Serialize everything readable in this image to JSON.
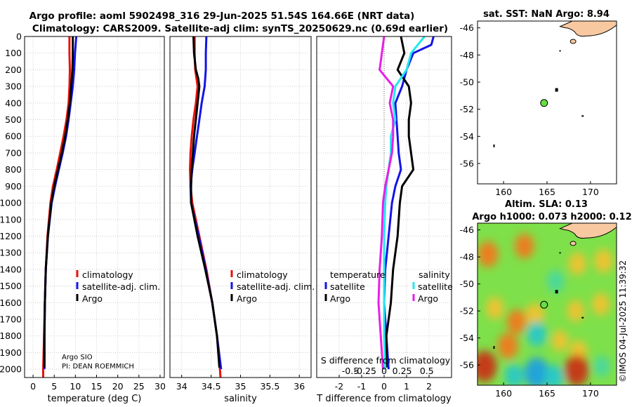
{
  "title_line1": "Argo profile: aoml 5902498_316 29-Jun-2025 51.54S 164.66E (NRT data)",
  "title_line2": "Climatology: CARS2009. Satellite-adj clim: synTS_20250629.nc (0.69d earlier)",
  "watermark": "©IMOS 04-Jul-2025 11:39:32",
  "colors": {
    "climatology": "#e8120a",
    "satellite": "#1414e6",
    "argo": "#000000",
    "sat_salinity": "#22e8f0",
    "argo_salinity": "#e81ee8",
    "land": "#f8c8a0",
    "float": "#66dd44"
  },
  "chart_data": [
    {
      "type": "line",
      "name": "temperature",
      "xlabel": "temperature (deg C)",
      "xlim": [
        -2,
        31
      ],
      "ylim": [
        2050,
        0
      ],
      "xticks": [
        0,
        5,
        10,
        15,
        20,
        25,
        30
      ],
      "yticks": [
        0,
        100,
        200,
        300,
        400,
        500,
        600,
        700,
        800,
        900,
        1000,
        1100,
        1200,
        1300,
        1400,
        1500,
        1600,
        1700,
        1800,
        1900,
        2000
      ],
      "legend": [
        "climatology",
        "satellite-adj. clim.",
        "Argo"
      ],
      "annotation": [
        "Argo SIO",
        "PI: DEAN ROEMMICH"
      ],
      "series": [
        {
          "name": "climatology",
          "color": "#e8120a",
          "depth": [
            0,
            100,
            200,
            300,
            400,
            500,
            600,
            700,
            800,
            900,
            1000,
            1200,
            1400,
            1600,
            1800,
            2000,
            2050
          ],
          "values": [
            8.6,
            8.6,
            8.7,
            8.6,
            8.4,
            7.9,
            7.2,
            6.4,
            5.6,
            4.7,
            4.1,
            3.4,
            3.0,
            2.8,
            2.6,
            2.4,
            2.4
          ]
        },
        {
          "name": "satellite-adj. clim.",
          "color": "#1414e6",
          "depth": [
            0,
            100,
            200,
            300,
            400,
            500,
            600,
            700,
            800,
            900,
            1000,
            1200,
            1400,
            1600,
            1800,
            2000
          ],
          "values": [
            10.2,
            9.9,
            9.7,
            9.4,
            8.9,
            8.4,
            7.8,
            7.0,
            6.1,
            5.2,
            4.4,
            3.5,
            3.0,
            2.8,
            2.7,
            2.7
          ]
        },
        {
          "name": "Argo",
          "color": "#000000",
          "depth": [
            0,
            100,
            200,
            300,
            400,
            500,
            600,
            700,
            800,
            900,
            1000,
            1200,
            1400,
            1600,
            1800,
            1990
          ],
          "values": [
            9.4,
            9.4,
            9.3,
            9.0,
            8.7,
            8.2,
            7.6,
            6.8,
            5.9,
            5.0,
            4.3,
            3.5,
            3.0,
            2.8,
            2.7,
            2.7
          ]
        }
      ]
    },
    {
      "type": "line",
      "name": "salinity",
      "xlabel": "salinity",
      "xlim": [
        33.8,
        36.2
      ],
      "ylim": [
        2050,
        0
      ],
      "xticks": [
        34,
        34.5,
        35,
        35.5,
        36
      ],
      "legend": [
        "climatology",
        "satellite-adj. clim.",
        "Argo"
      ],
      "series": [
        {
          "name": "climatology",
          "color": "#e8120a",
          "depth": [
            0,
            100,
            200,
            300,
            400,
            500,
            600,
            700,
            800,
            900,
            1000,
            1200,
            1400,
            1600,
            1800,
            2000,
            2050
          ],
          "values": [
            34.22,
            34.22,
            34.23,
            34.27,
            34.24,
            34.2,
            34.17,
            34.15,
            34.14,
            34.15,
            34.18,
            34.3,
            34.42,
            34.52,
            34.6,
            34.65,
            34.66
          ]
        },
        {
          "name": "satellite-adj. clim.",
          "color": "#1414e6",
          "depth": [
            0,
            100,
            200,
            300,
            400,
            500,
            600,
            700,
            800,
            900,
            1000,
            1200,
            1400,
            1600,
            1800,
            2000
          ],
          "values": [
            34.42,
            34.41,
            34.41,
            34.39,
            34.34,
            34.3,
            34.26,
            34.22,
            34.18,
            34.15,
            34.16,
            34.29,
            34.41,
            34.52,
            34.6,
            34.67
          ]
        },
        {
          "name": "Argo",
          "color": "#000000",
          "depth": [
            0,
            100,
            200,
            250,
            300,
            400,
            500,
            600,
            700,
            800,
            900,
            1000,
            1200,
            1400,
            1600,
            1800,
            1990
          ],
          "values": [
            34.2,
            34.21,
            34.24,
            34.28,
            34.3,
            34.27,
            34.24,
            34.21,
            34.19,
            34.17,
            34.16,
            34.16,
            34.27,
            34.4,
            34.52,
            34.6,
            34.64
          ]
        }
      ]
    },
    {
      "type": "line",
      "name": "difference",
      "xlabel": "T difference from climatology",
      "xlabel2": "S difference from climatology",
      "xlim": [
        -3,
        3
      ],
      "ylim": [
        2050,
        0
      ],
      "xticks": [
        -2,
        -1,
        0,
        1,
        2
      ],
      "xticklabels": [
        "-2",
        "-1",
        "0",
        "1",
        "2"
      ],
      "sticks": [
        "-0.5",
        "-0.25",
        "0",
        "0.25",
        "0.5"
      ],
      "legend_titles": [
        "temperature",
        "salinity"
      ],
      "legend_t": [
        "satellite",
        "Argo"
      ],
      "legend_s": [
        "satellite",
        "Argo"
      ],
      "series": [
        {
          "name": "T satellite",
          "color": "#1414e6",
          "depth": [
            0,
            50,
            100,
            200,
            300,
            400,
            500,
            600,
            700,
            800,
            900,
            1000,
            1200,
            1400,
            1600,
            1800,
            2000
          ],
          "values": [
            2.2,
            2.1,
            1.3,
            1.0,
            0.8,
            0.5,
            0.55,
            0.6,
            0.65,
            0.75,
            0.5,
            0.35,
            0.2,
            0.05,
            0.0,
            0.1,
            0.2
          ]
        },
        {
          "name": "T Argo",
          "color": "#000000",
          "depth": [
            0,
            100,
            200,
            300,
            400,
            500,
            600,
            700,
            800,
            900,
            1000,
            1200,
            1400,
            1600,
            1800,
            1990
          ],
          "values": [
            0.75,
            0.9,
            0.6,
            1.1,
            1.2,
            1.1,
            1.1,
            1.2,
            1.3,
            0.8,
            0.7,
            0.6,
            0.4,
            0.3,
            0.1,
            0.1
          ]
        },
        {
          "name": "S satellite",
          "color": "#22e8f0",
          "depth": [
            0,
            100,
            200,
            300,
            400,
            500,
            600,
            700,
            800,
            900,
            1000,
            1200,
            1400,
            1600,
            1800,
            2000
          ],
          "values": [
            1.8,
            1.2,
            1.0,
            0.5,
            0.4,
            0.5,
            0.3,
            0.3,
            0.2,
            0.1,
            0.05,
            0.0,
            0.0,
            0.0,
            0.0,
            0.05
          ]
        },
        {
          "name": "S Argo",
          "color": "#e81ee8",
          "depth": [
            0,
            100,
            200,
            250,
            300,
            400,
            500,
            600,
            700,
            800,
            900,
            1000,
            1200,
            1400,
            1600,
            1800,
            2000
          ],
          "values": [
            0.0,
            -0.1,
            -0.2,
            0.1,
            0.4,
            0.25,
            0.4,
            0.4,
            0.35,
            0.2,
            0.05,
            -0.05,
            -0.1,
            -0.2,
            -0.25,
            -0.15,
            -0.05
          ]
        }
      ]
    },
    {
      "type": "map",
      "name": "sst-map",
      "title": "sat. SST: NaN Argo: 8.94",
      "xlim": [
        157,
        173
      ],
      "ylim": [
        -57.5,
        -45.5
      ],
      "xticks": [
        160,
        165,
        170
      ],
      "yticks": [
        -46,
        -48,
        -50,
        -52,
        -54,
        -56
      ],
      "float": {
        "lon": 164.66,
        "lat": -51.54
      }
    },
    {
      "type": "heatmap",
      "name": "sla-map",
      "title_line1": "Altim. SLA: 0.13",
      "title_line2": "Argo h1000: 0.073 h2000: 0.12",
      "xlim": [
        157,
        173
      ],
      "ylim": [
        -57.5,
        -45.5
      ],
      "xticks": [
        160,
        165,
        170
      ],
      "yticks": [
        -46,
        -48,
        -50,
        -52,
        -54,
        -56
      ],
      "float": {
        "lon": 164.66,
        "lat": -51.54
      },
      "blobs": [
        {
          "lon": 158.2,
          "lat": -47.8,
          "v": 0.9
        },
        {
          "lon": 162.4,
          "lat": -47.2,
          "v": 0.8
        },
        {
          "lon": 168.5,
          "lat": -48.5,
          "v": 0.6
        },
        {
          "lon": 166.0,
          "lat": -49.8,
          "v": -0.6
        },
        {
          "lon": 171.5,
          "lat": -48.3,
          "v": 0.7
        },
        {
          "lon": 159.0,
          "lat": -51.8,
          "v": 0.6
        },
        {
          "lon": 161.5,
          "lat": -52.8,
          "v": 0.8
        },
        {
          "lon": 163.6,
          "lat": -52.3,
          "v": 0.7
        },
        {
          "lon": 168.3,
          "lat": -52.0,
          "v": 0.55
        },
        {
          "lon": 171.2,
          "lat": -51.5,
          "v": 0.6
        },
        {
          "lon": 163.8,
          "lat": -53.7,
          "v": -0.8
        },
        {
          "lon": 166.5,
          "lat": -54.2,
          "v": 0.5
        },
        {
          "lon": 160.5,
          "lat": -54.6,
          "v": 0.9
        },
        {
          "lon": 168.6,
          "lat": -55.0,
          "v": 0.6
        },
        {
          "lon": 157.8,
          "lat": -56.1,
          "v": 1.3
        },
        {
          "lon": 163.8,
          "lat": -56.6,
          "v": -1.3
        },
        {
          "lon": 168.4,
          "lat": -56.4,
          "v": 1.3
        },
        {
          "lon": 161.2,
          "lat": -56.8,
          "v": -0.7
        },
        {
          "lon": 171.3,
          "lat": -56.1,
          "v": -0.5
        },
        {
          "lon": 165.8,
          "lat": -56.9,
          "v": -0.8
        }
      ]
    }
  ]
}
